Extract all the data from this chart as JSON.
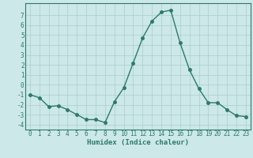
{
  "x": [
    0,
    1,
    2,
    3,
    4,
    5,
    6,
    7,
    8,
    9,
    10,
    11,
    12,
    13,
    14,
    15,
    16,
    17,
    18,
    19,
    20,
    21,
    22,
    23
  ],
  "y": [
    -1.0,
    -1.3,
    -2.2,
    -2.1,
    -2.5,
    -3.0,
    -3.5,
    -3.5,
    -3.8,
    -1.7,
    -0.3,
    2.2,
    4.7,
    6.4,
    7.3,
    7.5,
    4.2,
    1.5,
    -0.4,
    -1.8,
    -1.8,
    -2.5,
    -3.1,
    -3.2
  ],
  "line_color": "#2d7a6a",
  "marker_color": "#2d7a6a",
  "background_color": "#cce8e8",
  "grid_color": "#aacece",
  "xlabel": "Humidex (Indice chaleur)",
  "ylim": [
    -4.5,
    8.2
  ],
  "xlim": [
    -0.5,
    23.5
  ],
  "yticks": [
    -4,
    -3,
    -2,
    -1,
    0,
    1,
    2,
    3,
    4,
    5,
    6,
    7
  ],
  "xticks": [
    0,
    1,
    2,
    3,
    4,
    5,
    6,
    7,
    8,
    9,
    10,
    11,
    12,
    13,
    14,
    15,
    16,
    17,
    18,
    19,
    20,
    21,
    22,
    23
  ],
  "font_color": "#2d7a6a",
  "linewidth": 1.0,
  "markersize": 2.5,
  "tick_fontsize": 5.5,
  "xlabel_fontsize": 6.5
}
